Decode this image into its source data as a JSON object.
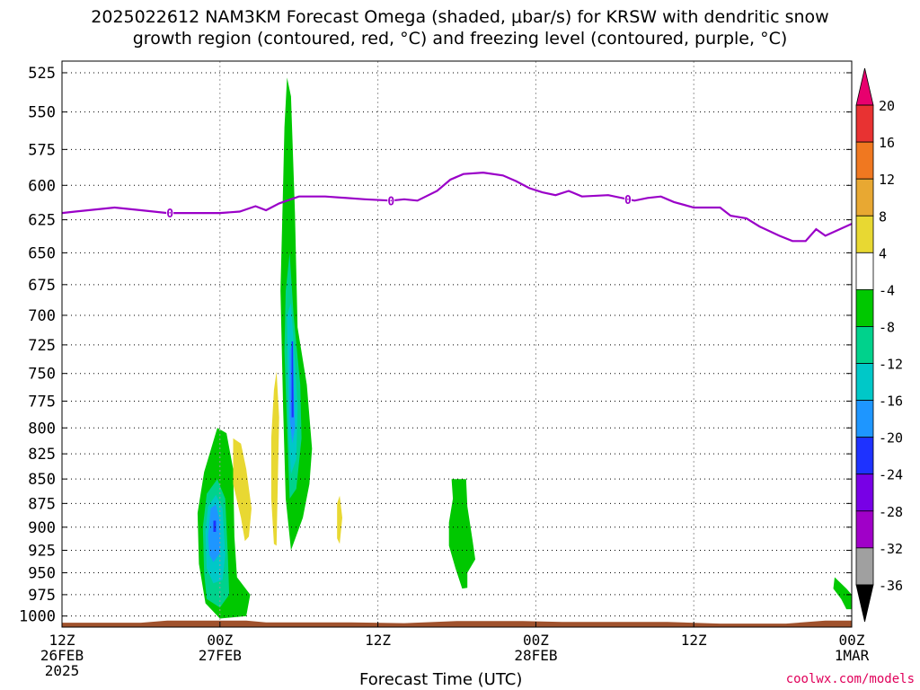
{
  "title_line1": "2025022612 NAM3KM Forecast Omega (shaded, μbar/s) for KRSW with dendritic snow",
  "title_line2": "growth region (contoured, red, °C) and freezing level (contoured, purple, °C)",
  "watermark": "coolwx.com/models",
  "chart_data": {
    "type": "heatmap",
    "title": "2025022612 NAM3KM Forecast Omega (shaded, μbar/s) for KRSW with dendritic snow growth region (contoured, red, °C) and freezing level (contoured, purple, °C)",
    "xlabel": "Forecast Time (UTC)",
    "ylabel": "",
    "x_unit": "forecast hours from 12Z 26FEB 2025",
    "xlim": [
      0,
      60
    ],
    "ylim": [
      1010,
      520
    ],
    "y_scale": "log-pressure",
    "y_ticks": [
      525,
      550,
      575,
      600,
      625,
      650,
      675,
      700,
      725,
      750,
      775,
      800,
      825,
      850,
      875,
      900,
      925,
      950,
      975,
      1000
    ],
    "x_ticks": [
      {
        "x": 0,
        "lines": [
          "12Z",
          "26FEB",
          "2025"
        ]
      },
      {
        "x": 12,
        "lines": [
          "00Z",
          "27FEB"
        ]
      },
      {
        "x": 24,
        "lines": [
          "12Z"
        ]
      },
      {
        "x": 36,
        "lines": [
          "00Z",
          "28FEB"
        ]
      },
      {
        "x": 48,
        "lines": [
          "12Z"
        ]
      },
      {
        "x": 60,
        "lines": [
          "00Z",
          "1MAR"
        ]
      }
    ],
    "grid": true,
    "colorbar": {
      "labels": [
        "20",
        "16",
        "12",
        "8",
        "4",
        "-4",
        "-8",
        "-12",
        "-16",
        "-20",
        "-24",
        "-28",
        "-32",
        "-36"
      ],
      "colors": [
        "#e8006e",
        "#e83232",
        "#f07820",
        "#e8a832",
        "#e8d832",
        "#ffffff",
        "#00c800",
        "#00d28c",
        "#00c8c8",
        "#1e96ff",
        "#1e32ff",
        "#7800e6",
        "#a000c8",
        "#a0a0a0",
        "#000000"
      ]
    },
    "freezing_level": {
      "color": "#9a00c8",
      "label": "0",
      "label_x": [
        8.2,
        25.0,
        43.0
      ],
      "points": [
        [
          0,
          620
        ],
        [
          1,
          619
        ],
        [
          3,
          617
        ],
        [
          4,
          616
        ],
        [
          6,
          618
        ],
        [
          8,
          620
        ],
        [
          10,
          620
        ],
        [
          12,
          620
        ],
        [
          13.5,
          619
        ],
        [
          14.7,
          615
        ],
        [
          15.5,
          618
        ],
        [
          16.5,
          613
        ],
        [
          18,
          608
        ],
        [
          20,
          608
        ],
        [
          23,
          610
        ],
        [
          25,
          611
        ],
        [
          26,
          610
        ],
        [
          27,
          611
        ],
        [
          28.5,
          604
        ],
        [
          29.5,
          596
        ],
        [
          30.5,
          592
        ],
        [
          32,
          591
        ],
        [
          33.5,
          593
        ],
        [
          34.5,
          597
        ],
        [
          35.5,
          602
        ],
        [
          36.5,
          605
        ],
        [
          37.5,
          607
        ],
        [
          38.5,
          604
        ],
        [
          39.5,
          608
        ],
        [
          41.5,
          607
        ],
        [
          43.5,
          611
        ],
        [
          44.5,
          609
        ],
        [
          45.5,
          608
        ],
        [
          46.5,
          612
        ],
        [
          48,
          616
        ],
        [
          50,
          616
        ],
        [
          50.8,
          622
        ],
        [
          52,
          624
        ],
        [
          53,
          630
        ],
        [
          54.5,
          637
        ],
        [
          55.5,
          641
        ],
        [
          56.5,
          641
        ],
        [
          57.3,
          632
        ],
        [
          58,
          637
        ],
        [
          60,
          628
        ]
      ]
    },
    "omega_regions": [
      {
        "value_range": [
          -8,
          -4
        ],
        "color": "#00c800",
        "points": [
          [
            10.3,
            885
          ],
          [
            10.8,
            843
          ],
          [
            11.8,
            800
          ],
          [
            12.5,
            805
          ],
          [
            13.0,
            840
          ],
          [
            13.1,
            910
          ],
          [
            13.3,
            955
          ],
          [
            14.3,
            975
          ],
          [
            14.0,
            1000
          ],
          [
            12.0,
            1003
          ],
          [
            10.9,
            985
          ],
          [
            10.4,
            940
          ]
        ]
      },
      {
        "value_range": [
          -12,
          -8
        ],
        "color": "#00d28c",
        "points": [
          [
            10.7,
            900
          ],
          [
            11.0,
            865
          ],
          [
            11.8,
            850
          ],
          [
            12.4,
            870
          ],
          [
            12.6,
            930
          ],
          [
            12.7,
            975
          ],
          [
            12.0,
            990
          ],
          [
            11.0,
            980
          ],
          [
            10.8,
            950
          ]
        ]
      },
      {
        "value_range": [
          -16,
          -12
        ],
        "color": "#00c8c8",
        "points": [
          [
            10.9,
            905
          ],
          [
            11.1,
            878
          ],
          [
            11.7,
            866
          ],
          [
            12.2,
            880
          ],
          [
            12.4,
            930
          ],
          [
            12.2,
            958
          ],
          [
            11.5,
            962
          ],
          [
            11.0,
            945
          ]
        ]
      },
      {
        "value_range": [
          -20,
          -16
        ],
        "color": "#1e96ff",
        "points": [
          [
            11.1,
            910
          ],
          [
            11.3,
            880
          ],
          [
            11.7,
            876
          ],
          [
            12.0,
            895
          ],
          [
            12.0,
            928
          ],
          [
            11.5,
            938
          ],
          [
            11.2,
            930
          ]
        ]
      },
      {
        "value_range": [
          -24,
          -20
        ],
        "color": "#1e32ff",
        "points": [
          [
            11.5,
            893
          ],
          [
            11.7,
            893
          ],
          [
            11.7,
            905
          ],
          [
            11.5,
            905
          ]
        ]
      },
      {
        "value_range": [
          -8,
          -4
        ],
        "color": "#00c800",
        "points": [
          [
            16.9,
            560
          ],
          [
            17.1,
            528
          ],
          [
            17.4,
            540
          ],
          [
            17.7,
            620
          ],
          [
            17.9,
            710
          ],
          [
            18.6,
            760
          ],
          [
            19.0,
            820
          ],
          [
            18.8,
            855
          ],
          [
            18.3,
            890
          ],
          [
            17.4,
            925
          ],
          [
            17.0,
            870
          ],
          [
            16.8,
            780
          ],
          [
            16.6,
            680
          ],
          [
            16.8,
            600
          ]
        ]
      },
      {
        "value_range": [
          -12,
          -8
        ],
        "color": "#00d28c",
        "points": [
          [
            17.0,
            680
          ],
          [
            17.3,
            650
          ],
          [
            17.6,
            700
          ],
          [
            18.1,
            760
          ],
          [
            18.2,
            810
          ],
          [
            17.8,
            860
          ],
          [
            17.3,
            870
          ],
          [
            17.1,
            800
          ],
          [
            16.9,
            730
          ]
        ]
      },
      {
        "value_range": [
          -16,
          -12
        ],
        "color": "#00c8c8",
        "points": [
          [
            17.1,
            700
          ],
          [
            17.4,
            690
          ],
          [
            17.7,
            740
          ],
          [
            17.9,
            780
          ],
          [
            17.8,
            830
          ],
          [
            17.4,
            845
          ],
          [
            17.2,
            800
          ]
        ]
      },
      {
        "value_range": [
          -20,
          -16
        ],
        "color": "#1e96ff",
        "points": [
          [
            17.3,
            730
          ],
          [
            17.5,
            725
          ],
          [
            17.6,
            760
          ],
          [
            17.7,
            800
          ],
          [
            17.5,
            815
          ],
          [
            17.3,
            790
          ]
        ]
      },
      {
        "value_range": [
          -24,
          -20
        ],
        "color": "#1e32ff",
        "points": [
          [
            17.45,
            722
          ],
          [
            17.55,
            722
          ],
          [
            17.6,
            790
          ],
          [
            17.45,
            790
          ]
        ]
      },
      {
        "value_range": [
          4,
          8
        ],
        "color": "#e8d832",
        "points": [
          [
            13.0,
            810
          ],
          [
            13.6,
            815
          ],
          [
            14.0,
            840
          ],
          [
            14.4,
            880
          ],
          [
            14.2,
            910
          ],
          [
            13.9,
            915
          ],
          [
            13.6,
            890
          ],
          [
            13.0,
            855
          ]
        ]
      },
      {
        "value_range": [
          4,
          8
        ],
        "color": "#e8d832",
        "points": [
          [
            16.1,
            765
          ],
          [
            16.3,
            748
          ],
          [
            16.5,
            790
          ],
          [
            16.4,
            850
          ],
          [
            16.3,
            920
          ],
          [
            16.1,
            918
          ],
          [
            15.9,
            870
          ],
          [
            15.9,
            810
          ]
        ]
      },
      {
        "value_range": [
          4,
          8
        ],
        "color": "#e8d832",
        "points": [
          [
            20.9,
            875
          ],
          [
            21.1,
            867
          ],
          [
            21.3,
            890
          ],
          [
            21.1,
            918
          ],
          [
            20.9,
            912
          ]
        ]
      },
      {
        "value_range": [
          -8,
          -4
        ],
        "color": "#00c800",
        "points": [
          [
            29.6,
            850
          ],
          [
            30.7,
            850
          ],
          [
            30.8,
            878
          ],
          [
            31.2,
            915
          ],
          [
            31.4,
            935
          ],
          [
            30.8,
            950
          ],
          [
            30.8,
            967
          ],
          [
            30.4,
            968
          ],
          [
            29.9,
            945
          ],
          [
            29.4,
            920
          ],
          [
            29.4,
            895
          ],
          [
            29.7,
            870
          ]
        ]
      },
      {
        "value_range": [
          -8,
          -4
        ],
        "color": "#00c800",
        "points": [
          [
            58.7,
            955
          ],
          [
            59.6,
            968
          ],
          [
            60,
            975
          ],
          [
            60,
            992
          ],
          [
            59.6,
            992
          ],
          [
            59.2,
            980
          ],
          [
            58.6,
            968
          ]
        ]
      }
    ],
    "terrain": {
      "color": "#a0522d",
      "points": [
        [
          0,
          1008
        ],
        [
          6,
          1008
        ],
        [
          8,
          1005.5
        ],
        [
          14,
          1005.5
        ],
        [
          15.5,
          1007.5
        ],
        [
          22,
          1007.5
        ],
        [
          26,
          1008.5
        ],
        [
          30,
          1006
        ],
        [
          35,
          1006
        ],
        [
          38,
          1007
        ],
        [
          46,
          1007
        ],
        [
          50,
          1009
        ],
        [
          55,
          1009
        ],
        [
          58,
          1005.5
        ],
        [
          60,
          1005.5
        ]
      ]
    }
  }
}
